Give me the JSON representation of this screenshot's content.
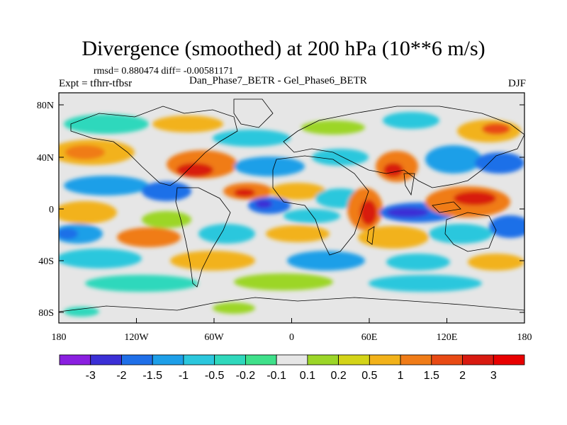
{
  "title": "Divergence (smoothed) at 200 hPa (10**6 m/s)",
  "stats": "rmsd= 0.880474 diff= -0.00581171",
  "experiment": "Expt = tfhrr-tfbsr",
  "comparison": "Dan_Phase7_BETR - Gel_Phase6_BETR",
  "season": "DJF",
  "lat_ticks": [
    "80N",
    "40N",
    "0",
    "40S",
    "80S"
  ],
  "lon_ticks": [
    "180",
    "120W",
    "60W",
    "0",
    "60E",
    "120E",
    "180"
  ],
  "colorbar": {
    "labels": [
      "-3",
      "-2",
      "-1.5",
      "-1",
      "-0.5",
      "-0.2",
      "-0.1",
      "0.1",
      "0.2",
      "0.5",
      "1",
      "1.5",
      "2",
      "3"
    ],
    "colors": [
      "#8a1fe0",
      "#3b2fd6",
      "#1f6fe8",
      "#1d9fe8",
      "#2bc7dd",
      "#2fd8bc",
      "#3fe08a",
      "#e6e6e6",
      "#9cd628",
      "#d4d418",
      "#f2b21a",
      "#f07c18",
      "#e84a14",
      "#d81a10",
      "#e80000"
    ]
  }
}
